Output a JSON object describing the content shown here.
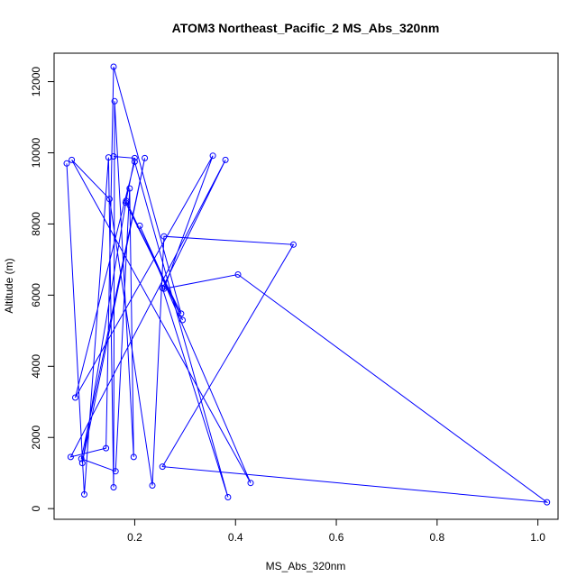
{
  "chart_data": {
    "type": "line",
    "title": "ATOM3 Northeast_Pacific_2 MS_Abs_320nm",
    "xlabel": "MS_Abs_320nm",
    "ylabel": "Altitude (m)",
    "xlim": [
      0.04,
      1.04
    ],
    "ylim": [
      -300,
      12800
    ],
    "xticks": [
      0.2,
      0.4,
      0.6,
      0.8,
      1.0
    ],
    "xtick_labels": [
      "0.2",
      "0.4",
      "0.6",
      "0.8",
      "1.0"
    ],
    "yticks": [
      0,
      2000,
      4000,
      6000,
      8000,
      10000,
      12000
    ],
    "ytick_labels": [
      "0",
      "2000",
      "4000",
      "6000",
      "8000",
      "10000",
      "12000"
    ],
    "grid": false,
    "line_color": "#0000ff",
    "series": [
      {
        "x": [
          0.065,
          0.1,
          0.148,
          0.158,
          0.16,
          0.198,
          0.19,
          0.162,
          0.094,
          0.22,
          0.096,
          0.183,
          0.295,
          0.21,
          0.43,
          0.075,
          0.15,
          0.235,
          0.258,
          0.515,
          0.255,
          1.018,
          0.405,
          0.258,
          0.355,
          0.082,
          0.2,
          0.385,
          0.255,
          0.38,
          0.073,
          0.143,
          0.158,
          0.292,
          0.182,
          0.2,
          0.158
        ],
        "y": [
          9700,
          400,
          9870,
          600,
          11450,
          1450,
          9000,
          1050,
          1400,
          9850,
          1280,
          8650,
          5300,
          7950,
          720,
          9800,
          8700,
          650,
          7650,
          7420,
          1180,
          180,
          6580,
          6180,
          9920,
          3120,
          9750,
          320,
          6200,
          9800,
          1450,
          1700,
          12420,
          5480,
          8600,
          9850,
          9900
        ]
      }
    ]
  }
}
